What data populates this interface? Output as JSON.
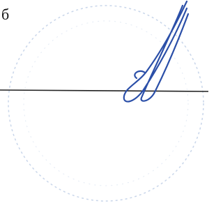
{
  "label": "б"
}
